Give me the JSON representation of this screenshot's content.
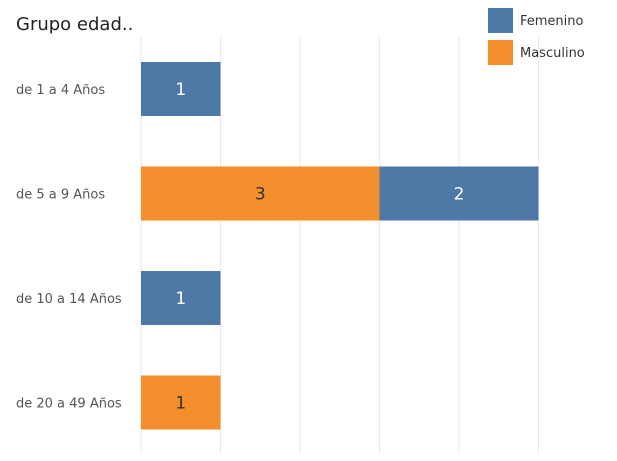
{
  "chart_data": {
    "type": "bar",
    "orientation": "horizontal",
    "stacked": true,
    "row_header": "Grupo edad..",
    "categories": [
      "de 1 a 4 Años",
      "de 5 a 9 Años",
      "de 10 a 14 Años",
      "de 20 a 49 Años"
    ],
    "series": [
      {
        "name": "Masculino",
        "color": "#f28e2b",
        "values": [
          0,
          3,
          0,
          1
        ]
      },
      {
        "name": "Femenino",
        "color": "#4e79a7",
        "values": [
          1,
          2,
          1,
          0
        ]
      }
    ],
    "xlim": [
      0,
      6
    ],
    "grid": true,
    "legend": {
      "position": "top-right",
      "items": [
        {
          "name": "Femenino",
          "color": "#4e79a7"
        },
        {
          "name": "Masculino",
          "color": "#f28e2b"
        }
      ]
    },
    "label_colors": {
      "Femenino": "#ffffff",
      "Masculino": "#333333"
    }
  }
}
